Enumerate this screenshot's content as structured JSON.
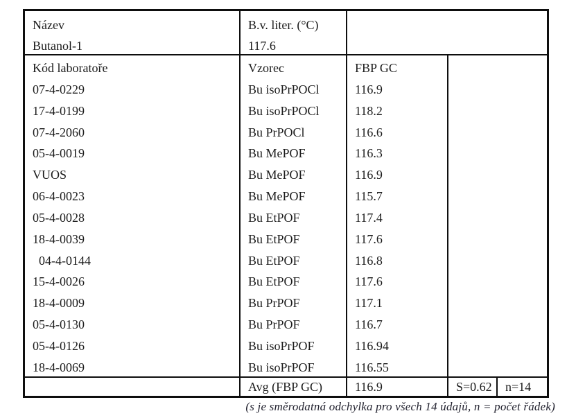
{
  "table": {
    "name_label": "Název",
    "name_value": "Butanol-1",
    "bv_label": "B.v. liter. (°C)",
    "bv_value": "117.6",
    "col_headers": {
      "code": "Kód laboratoře",
      "formula": "Vzorec",
      "fbp": "FBP GC"
    },
    "rows": [
      {
        "code": "07-4-0229",
        "formula": "Bu isoPrPOCl",
        "fbp": "116.9"
      },
      {
        "code": "17-4-0199",
        "formula": "Bu isoPrPOCl",
        "fbp": "118.2"
      },
      {
        "code": "07-4-2060",
        "formula": "Bu PrPOCl",
        "fbp": "116.6"
      },
      {
        "code": "05-4-0019",
        "formula": "Bu MePOF",
        "fbp": "116.3"
      },
      {
        "code": "VUOS",
        "formula": "Bu MePOF",
        "fbp": "116.9"
      },
      {
        "code": "06-4-0023",
        "formula": "Bu MePOF",
        "fbp": "115.7"
      },
      {
        "code": "05-4-0028",
        "formula": "Bu EtPOF",
        "fbp": "117.4"
      },
      {
        "code": "18-4-0039",
        "formula": "Bu EtPOF",
        "fbp": "117.6"
      },
      {
        "code": "04-4-0144",
        "formula": "Bu EtPOF",
        "fbp": "116.8"
      },
      {
        "code": "15-4-0026",
        "formula": "Bu EtPOF",
        "fbp": "117.6"
      },
      {
        "code": "18-4-0009",
        "formula": "Bu PrPOF",
        "fbp": "117.1"
      },
      {
        "code": "05-4-0130",
        "formula": "Bu PrPOF",
        "fbp": "116.7"
      },
      {
        "code": "05-4-0126",
        "formula": "Bu isoPrPOF",
        "fbp": "116.94"
      },
      {
        "code": "18-4-0069",
        "formula": "Bu isoPrPOF",
        "fbp": "116.55"
      }
    ],
    "summary": {
      "avg_label": "Avg (FBP GC)",
      "avg_value": "116.9",
      "s_value": "S=0.62",
      "n_value": "n=14"
    }
  },
  "footnote": "(s je směrodatná odchylka pro všech 14 údajů, n = počet řádek)",
  "colors": {
    "border": "#0e0e0e",
    "text": "#1b1b1b",
    "background": "#ffffff"
  }
}
